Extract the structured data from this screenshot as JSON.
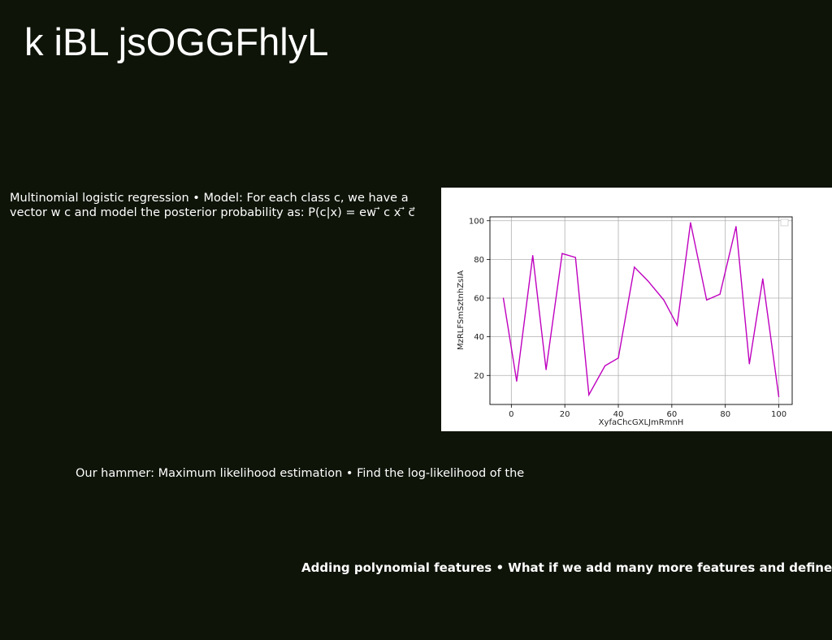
{
  "slide": {
    "title": "k iBL jsOGGFhlyL",
    "text_1": "Multinomial logistic regression • Model: For each class c, we have a vector w c and model the posterior probability as: P(c|x) = ew ⃗ c x ⃗ c⃗",
    "text_2": "Our hammer: Maximum likelihood estimation • Find the log-likelihood of the",
    "text_3": "Adding polynomial features • What if we add many more features and define"
  },
  "colors": {
    "background": "#0e1408",
    "line": "#bf00bf",
    "grid": "#b0b0b0"
  },
  "chart_data": {
    "type": "line",
    "title": "",
    "xlabel": "XyfaChcGXLJmRmnH",
    "ylabel": "MzRLFSmSztnhZsIA",
    "xlim": [
      -8,
      105
    ],
    "ylim": [
      5,
      102
    ],
    "xticks": [
      0,
      20,
      40,
      60,
      80,
      100
    ],
    "yticks": [
      20,
      40,
      60,
      80,
      100
    ],
    "grid": true,
    "legend": "top-right",
    "series": [
      {
        "x": [
          -3,
          2,
          8,
          13,
          19,
          24,
          29,
          35,
          40,
          46,
          51,
          57,
          62,
          67,
          73,
          78,
          84,
          89,
          94,
          100
        ],
        "y": [
          60,
          17,
          82,
          23,
          83,
          81,
          10,
          25,
          29,
          76,
          69,
          59,
          46,
          99,
          59,
          62,
          97,
          26,
          70,
          9
        ]
      }
    ]
  }
}
